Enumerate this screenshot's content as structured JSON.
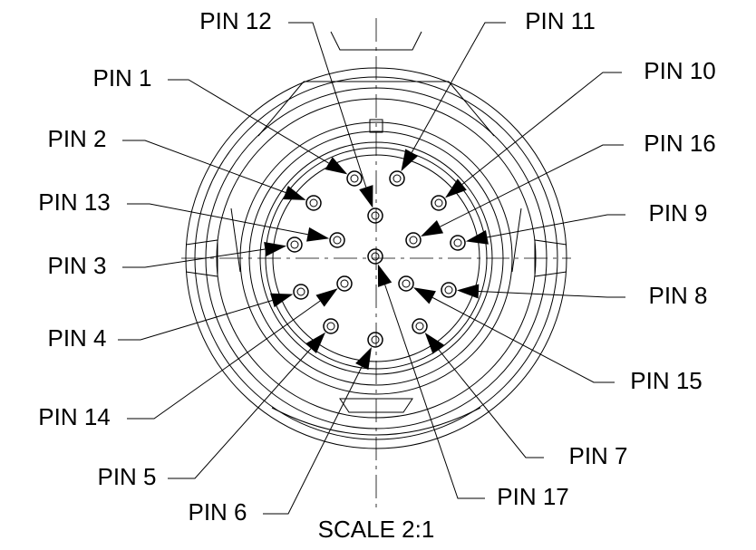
{
  "title": "SCALE 2:1",
  "pins": [
    "PIN 12",
    "PIN 11",
    "PIN 1",
    "PIN 10",
    "PIN 2",
    "PIN 16",
    "PIN 13",
    "PIN 9",
    "PIN 3",
    "PIN 8",
    "PIN 4",
    "PIN 15",
    "PIN 14",
    "PIN 7",
    "PIN 5",
    "PIN 17",
    "PIN 6"
  ]
}
